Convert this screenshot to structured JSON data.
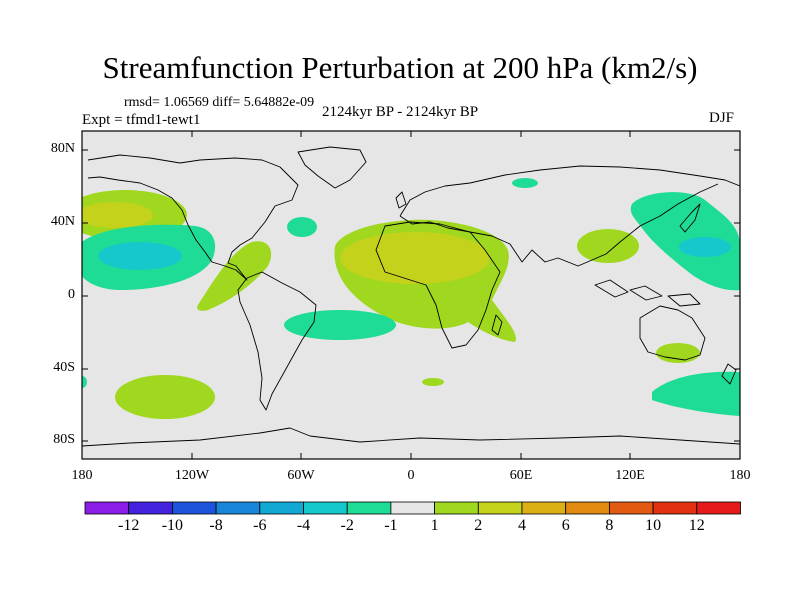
{
  "header": {
    "title": "Streamfunction Perturbation at 200 hPa (km2/s)",
    "stats": "rmsd= 1.06569 diff= 5.64882e-09",
    "experiment": "Expt = tfmd1-tewt1",
    "period": "2124kyr BP - 2124kyr BP",
    "season": "DJF"
  },
  "axes": {
    "lat_labels": [
      "80N",
      "40N",
      "0",
      "40S",
      "80S"
    ],
    "lon_labels": [
      "180",
      "120W",
      "60W",
      "0",
      "60E",
      "120E",
      "180"
    ]
  },
  "colorbar": {
    "labels": [
      "-12",
      "-10",
      "-8",
      "-6",
      "-4",
      "-2",
      "-1",
      "1",
      "2",
      "4",
      "6",
      "8",
      "10",
      "12"
    ],
    "colors": [
      "#8a1ee6",
      "#4422dd",
      "#1c55dc",
      "#1886d8",
      "#12a8d4",
      "#16c8cc",
      "#1edc96",
      "#e6e6e6",
      "#9fd81e",
      "#c4d21c",
      "#dcb014",
      "#e08a12",
      "#e25a10",
      "#e23012",
      "#e61a1a"
    ]
  },
  "map": {
    "background_color": "#e6e6e6"
  }
}
